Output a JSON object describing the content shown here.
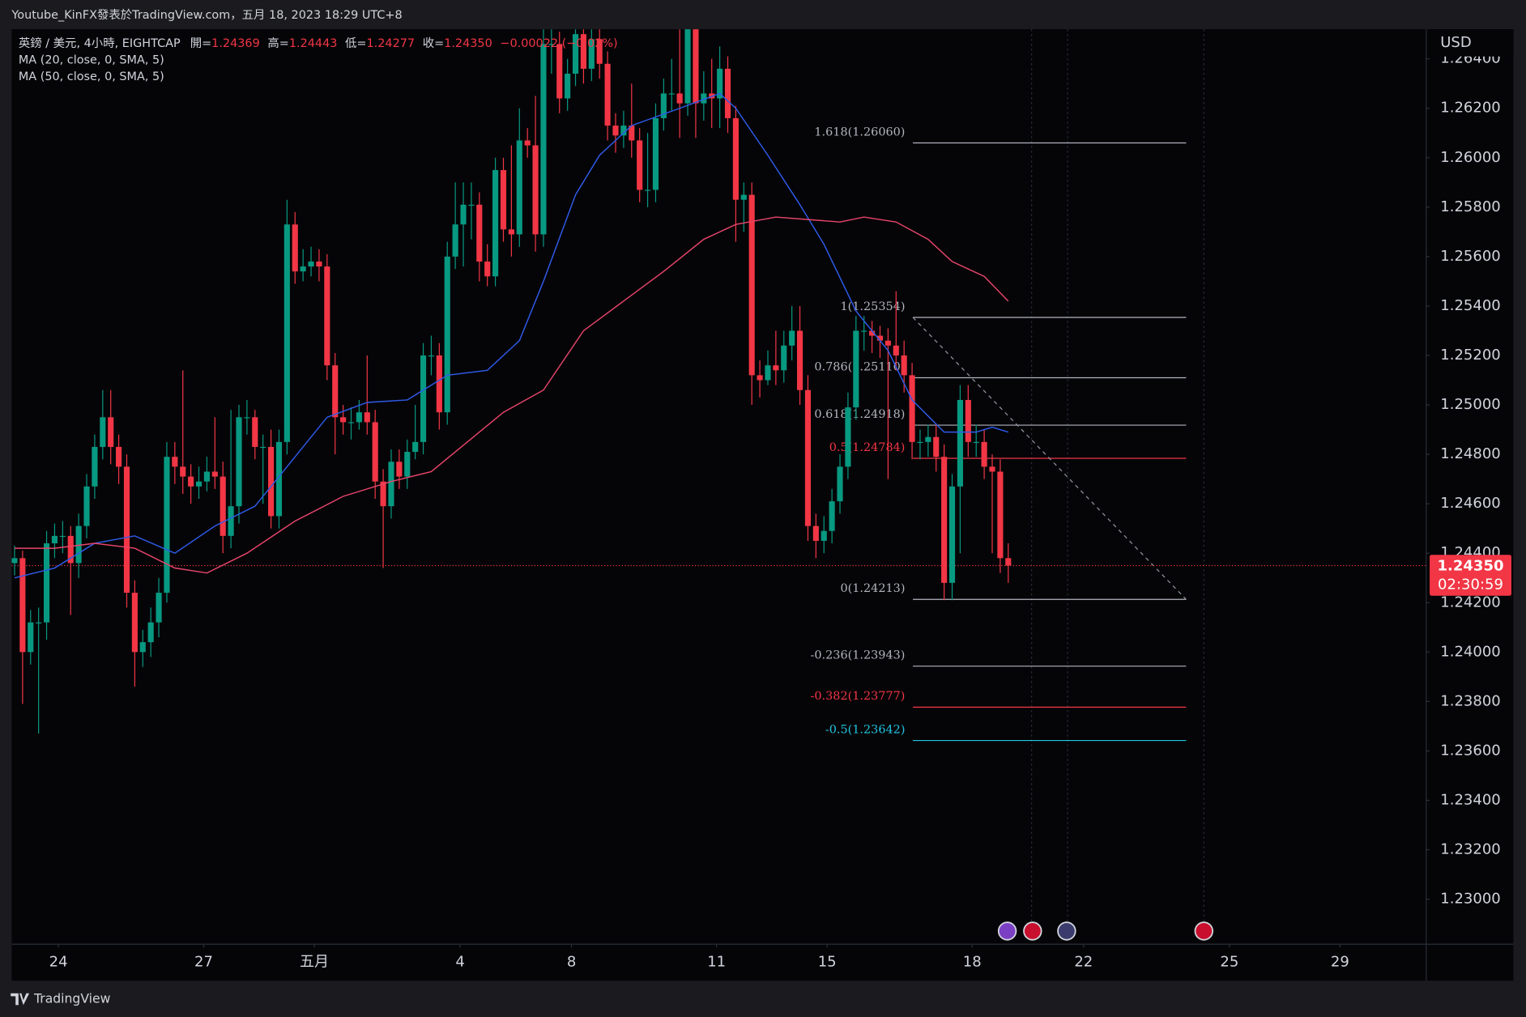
{
  "chart_data": {
    "type": "candlestick",
    "header": "Youtube_KinFX發表於TradingView.com，五月 18, 2023 18:29 UTC+8",
    "legend": {
      "symbol": "英鎊 / 美元, 4小時, EIGHTCAP",
      "ohlc": [
        {
          "key": "開=",
          "value": "1.24369"
        },
        {
          "key": "高=",
          "value": "1.24443"
        },
        {
          "key": "低=",
          "value": "1.24277"
        },
        {
          "key": "收=",
          "value": "1.24350"
        }
      ],
      "change": "−0.00022 (−0.02%)"
    },
    "axis_label": "USD",
    "footer": "TradingView",
    "up_color": "#089981",
    "down_color": "#f23645",
    "open": [
      1.2436,
      1.2438,
      1.24,
      1.2412,
      1.2412,
      1.2444,
      1.2447,
      1.2447,
      1.2436,
      1.2451,
      1.2467,
      1.2483,
      1.2495,
      1.2483,
      1.2475,
      1.2424,
      1.24,
      1.2404,
      1.2412,
      1.2424,
      1.2479,
      1.2475,
      1.2471,
      1.2467,
      1.2469,
      1.2473,
      1.2471,
      1.2447,
      1.2459,
      1.2495,
      1.2495,
      1.2483,
      1.2483,
      1.2455,
      1.2485,
      1.2573,
      1.2554,
      1.2556,
      1.2558,
      1.2556,
      1.2516,
      1.2495,
      1.2493,
      1.2493,
      1.2497,
      1.2493,
      1.2469,
      1.2459,
      1.2477,
      1.2471,
      1.2481,
      1.2485,
      1.252,
      1.252,
      1.2497,
      1.256,
      1.2573,
      1.2581,
      1.2581,
      1.2558,
      1.2552,
      1.2595,
      1.2571,
      1.2569,
      1.2607,
      1.2605,
      1.2569,
      1.2646,
      1.2646,
      1.2624,
      1.2634,
      1.265,
      1.2636,
      1.2648,
      1.2638,
      1.2613,
      1.2609,
      1.2613,
      1.2607,
      1.2587,
      1.2587,
      1.2616,
      1.2626,
      1.2626,
      1.2622,
      1.2652,
      1.2622,
      1.2626,
      1.2624,
      1.2636,
      1.2616,
      1.2583,
      1.2585,
      1.2512,
      1.251,
      1.2516,
      1.2514,
      1.2524,
      1.253,
      1.2506,
      1.2451,
      1.2445,
      1.2449,
      1.2461,
      1.2475,
      1.2499,
      1.253,
      1.253,
      1.2528,
      1.2526,
      1.2524,
      1.252,
      1.2512,
      1.2485,
      1.2485,
      1.2487,
      1.2479,
      1.2428,
      1.2467,
      1.2502,
      1.2485,
      1.2485,
      1.2475,
      1.2473,
      1.2438
    ],
    "high": [
      1.2443,
      1.2441,
      1.2417,
      1.2418,
      1.2449,
      1.2452,
      1.2453,
      1.2451,
      1.2456,
      1.2472,
      1.2488,
      1.2506,
      1.2506,
      1.2488,
      1.248,
      1.2429,
      1.2409,
      1.2418,
      1.243,
      1.2485,
      1.2485,
      1.2514,
      1.2476,
      1.2475,
      1.2479,
      1.2495,
      1.2477,
      1.2498,
      1.25,
      1.2502,
      1.2498,
      1.2488,
      1.249,
      1.249,
      1.2583,
      1.2578,
      1.2563,
      1.2564,
      1.2563,
      1.2561,
      1.2521,
      1.25,
      1.2499,
      1.2502,
      1.252,
      1.2498,
      1.2474,
      1.2482,
      1.2482,
      1.2486,
      1.25,
      1.2525,
      1.2528,
      1.2525,
      1.2566,
      1.259,
      1.259,
      1.259,
      1.2586,
      1.2565,
      1.26,
      1.26,
      1.2605,
      1.262,
      1.2612,
      1.2625,
      1.2652,
      1.2652,
      1.2651,
      1.264,
      1.2652,
      1.2652,
      1.2652,
      1.2652,
      1.2643,
      1.2618,
      1.2619,
      1.263,
      1.2612,
      1.261,
      1.2622,
      1.2632,
      1.264,
      1.2652,
      1.2652,
      1.2652,
      1.2635,
      1.264,
      1.2645,
      1.2641,
      1.2621,
      1.259,
      1.259,
      1.2518,
      1.2522,
      1.253,
      1.253,
      1.254,
      1.254,
      1.2512,
      1.2456,
      1.2455,
      1.2466,
      1.248,
      1.2505,
      1.2536,
      1.2536,
      1.2534,
      1.2532,
      1.2531,
      1.2546,
      1.2526,
      1.2517,
      1.249,
      1.2492,
      1.2492,
      1.2484,
      1.2472,
      1.2508,
      1.2508,
      1.2492,
      1.249,
      1.248,
      1.2478,
      1.2444
    ],
    "low": [
      1.2431,
      1.2379,
      1.2395,
      1.2367,
      1.2405,
      1.2438,
      1.244,
      1.2415,
      1.243,
      1.2446,
      1.2462,
      1.2478,
      1.2476,
      1.2468,
      1.2418,
      1.2386,
      1.2394,
      1.2398,
      1.2406,
      1.242,
      1.2468,
      1.2464,
      1.246,
      1.2462,
      1.2465,
      1.2466,
      1.244,
      1.2442,
      1.2452,
      1.2488,
      1.2478,
      1.246,
      1.245,
      1.245,
      1.248,
      1.2549,
      1.255,
      1.2552,
      1.255,
      1.251,
      1.248,
      1.2488,
      1.2486,
      1.249,
      1.2488,
      1.2462,
      1.2434,
      1.2454,
      1.2466,
      1.2466,
      1.2478,
      1.248,
      1.2512,
      1.249,
      1.2492,
      1.2555,
      1.2556,
      1.2567,
      1.255,
      1.2548,
      1.2548,
      1.2566,
      1.256,
      1.2564,
      1.26,
      1.2562,
      1.2564,
      1.2634,
      1.2618,
      1.2619,
      1.2629,
      1.263,
      1.2631,
      1.2632,
      1.2607,
      1.2602,
      1.2604,
      1.26,
      1.2582,
      1.258,
      1.2582,
      1.2611,
      1.2619,
      1.2608,
      1.2617,
      1.2608,
      1.2615,
      1.2612,
      1.2612,
      1.261,
      1.2566,
      1.257,
      1.25,
      1.2503,
      1.2508,
      1.2508,
      1.2509,
      1.2518,
      1.25,
      1.2445,
      1.2438,
      1.244,
      1.2444,
      1.2456,
      1.247,
      1.2494,
      1.2522,
      1.2521,
      1.2519,
      1.247,
      1.2514,
      1.2505,
      1.2478,
      1.2478,
      1.2479,
      1.2473,
      1.2421,
      1.2421,
      1.244,
      1.2479,
      1.2479,
      1.247,
      1.244,
      1.2432,
      1.2428
    ],
    "close": [
      1.2438,
      1.24,
      1.2412,
      1.2412,
      1.2444,
      1.2447,
      1.2447,
      1.2436,
      1.2451,
      1.2467,
      1.2483,
      1.2495,
      1.2483,
      1.2475,
      1.2424,
      1.24,
      1.2404,
      1.2412,
      1.2424,
      1.2479,
      1.2475,
      1.2471,
      1.2467,
      1.2469,
      1.2473,
      1.2471,
      1.2447,
      1.2459,
      1.2495,
      1.2495,
      1.2483,
      1.2483,
      1.2455,
      1.2485,
      1.2573,
      1.2554,
      1.2556,
      1.2558,
      1.2556,
      1.2516,
      1.2495,
      1.2493,
      1.2493,
      1.2497,
      1.2493,
      1.2469,
      1.2459,
      1.2477,
      1.2471,
      1.2481,
      1.2485,
      1.252,
      1.252,
      1.2497,
      1.256,
      1.2573,
      1.2581,
      1.2581,
      1.2558,
      1.2552,
      1.2595,
      1.2571,
      1.2569,
      1.2607,
      1.2605,
      1.2569,
      1.2646,
      1.2646,
      1.2624,
      1.2634,
      1.265,
      1.2636,
      1.2648,
      1.2638,
      1.2613,
      1.2609,
      1.2613,
      1.2607,
      1.2587,
      1.2587,
      1.2616,
      1.2626,
      1.2626,
      1.2622,
      1.2652,
      1.2622,
      1.2626,
      1.2624,
      1.2636,
      1.2616,
      1.2583,
      1.2585,
      1.2512,
      1.251,
      1.2516,
      1.2514,
      1.2524,
      1.253,
      1.2506,
      1.2451,
      1.2445,
      1.2449,
      1.2461,
      1.2475,
      1.2499,
      1.253,
      1.253,
      1.2528,
      1.2526,
      1.2524,
      1.252,
      1.2512,
      1.2485,
      1.2485,
      1.2487,
      1.2479,
      1.2428,
      1.2467,
      1.2502,
      1.2485,
      1.2485,
      1.2475,
      1.2473,
      1.2438,
      1.2435
    ],
    "series": [
      {
        "name": "MA (20, close, 0, SMA, 5)",
        "color": "#2f5bea",
        "x": [
          0,
          5,
          10,
          15,
          20,
          25,
          30,
          35,
          39,
          44,
          49,
          54,
          59,
          63,
          66,
          70,
          73,
          77,
          83,
          88,
          90,
          94,
          98,
          101,
          105,
          109,
          112,
          116,
          120,
          122,
          124
        ],
        "values": [
          1.243,
          1.2434,
          1.2444,
          1.2447,
          1.244,
          1.2451,
          1.2459,
          1.2479,
          1.2495,
          1.2501,
          1.2502,
          1.2512,
          1.2514,
          1.2526,
          1.255,
          1.2585,
          1.2601,
          1.2613,
          1.262,
          1.2626,
          1.262,
          1.2601,
          1.2581,
          1.2565,
          1.2538,
          1.2522,
          1.2502,
          1.2489,
          1.2489,
          1.2491,
          1.2489
        ]
      },
      {
        "name": "MA (50, close, 0, SMA, 5)",
        "color": "#e8456a",
        "x": [
          0,
          5,
          10,
          15,
          20,
          24,
          29,
          35,
          41,
          47,
          52,
          55,
          61,
          66,
          71,
          76,
          81,
          86,
          90,
          95,
          99,
          103,
          106,
          110,
          114,
          117,
          121,
          124
        ],
        "values": [
          1.2442,
          1.2442,
          1.2444,
          1.2442,
          1.2434,
          1.2432,
          1.244,
          1.2453,
          1.2463,
          1.2469,
          1.2473,
          1.2481,
          1.2497,
          1.2506,
          1.253,
          1.2542,
          1.2554,
          1.2567,
          1.2573,
          1.2576,
          1.2575,
          1.2574,
          1.2576,
          1.2574,
          1.2567,
          1.2558,
          1.2552,
          1.2542
        ]
      }
    ],
    "fibonacci": {
      "start": 112.1,
      "end": 146.2,
      "levels": [
        {
          "value": 1.2606,
          "label": "1.618(1.26060)",
          "color": "#b2b5be"
        },
        {
          "value": 1.25354,
          "label": "1(1.25354)",
          "color": "#b2b5be"
        },
        {
          "value": 1.2511,
          "label": "0.786(1.25110)",
          "color": "#b2b5be"
        },
        {
          "value": 1.24918,
          "label": "0.618(1.24918)",
          "color": "#b2b5be"
        },
        {
          "value": 1.24784,
          "label": "0.5(1.24784)",
          "color": "#f23645"
        },
        {
          "value": 1.24213,
          "label": "0(1.24213)",
          "color": "#b2b5be"
        },
        {
          "value": 1.23943,
          "label": "-0.236(1.23943)",
          "color": "#b2b5be"
        },
        {
          "value": 1.23777,
          "label": "-0.382(1.23777)",
          "color": "#f23645"
        },
        {
          "value": 1.23642,
          "label": "-0.5(1.23642)",
          "color": "#22c5e0"
        }
      ]
    },
    "last_price": {
      "value": 1.2435,
      "label": "1.24350",
      "countdown": "02:30:59",
      "color": "#f23645"
    },
    "xlim": [
      -0.36,
      176.1
    ],
    "xticks": [
      {
        "value": 5.47,
        "label": "24"
      },
      {
        "value": 23.6,
        "label": "27"
      },
      {
        "value": 37.4,
        "label": "五月"
      },
      {
        "value": 55.6,
        "label": "4"
      },
      {
        "value": 69.5,
        "label": "8"
      },
      {
        "value": 87.6,
        "label": "11"
      },
      {
        "value": 101.4,
        "label": "15"
      },
      {
        "value": 119.5,
        "label": "18"
      },
      {
        "value": 133.4,
        "label": "22"
      },
      {
        "value": 151.6,
        "label": "25"
      },
      {
        "value": 165.4,
        "label": "29"
      }
    ],
    "ylim": [
      1.2282,
      1.2652
    ],
    "yticks": [
      {
        "value": 1.264,
        "label": "1.26400"
      },
      {
        "value": 1.262,
        "label": "1.26200"
      },
      {
        "value": 1.26,
        "label": "1.26000"
      },
      {
        "value": 1.258,
        "label": "1.25800"
      },
      {
        "value": 1.256,
        "label": "1.25600"
      },
      {
        "value": 1.254,
        "label": "1.25400"
      },
      {
        "value": 1.252,
        "label": "1.25200"
      },
      {
        "value": 1.25,
        "label": "1.25000"
      },
      {
        "value": 1.248,
        "label": "1.24800"
      },
      {
        "value": 1.246,
        "label": "1.24600"
      },
      {
        "value": 1.244,
        "label": "1.24400"
      },
      {
        "value": 1.242,
        "label": "1.24200"
      },
      {
        "value": 1.24,
        "label": "1.24000"
      },
      {
        "value": 1.238,
        "label": "1.23800"
      },
      {
        "value": 1.236,
        "label": "1.23600"
      },
      {
        "value": 1.234,
        "label": "1.23400"
      },
      {
        "value": 1.232,
        "label": "1.23200"
      },
      {
        "value": 1.23,
        "label": "1.23000"
      }
    ],
    "grid": false
  }
}
